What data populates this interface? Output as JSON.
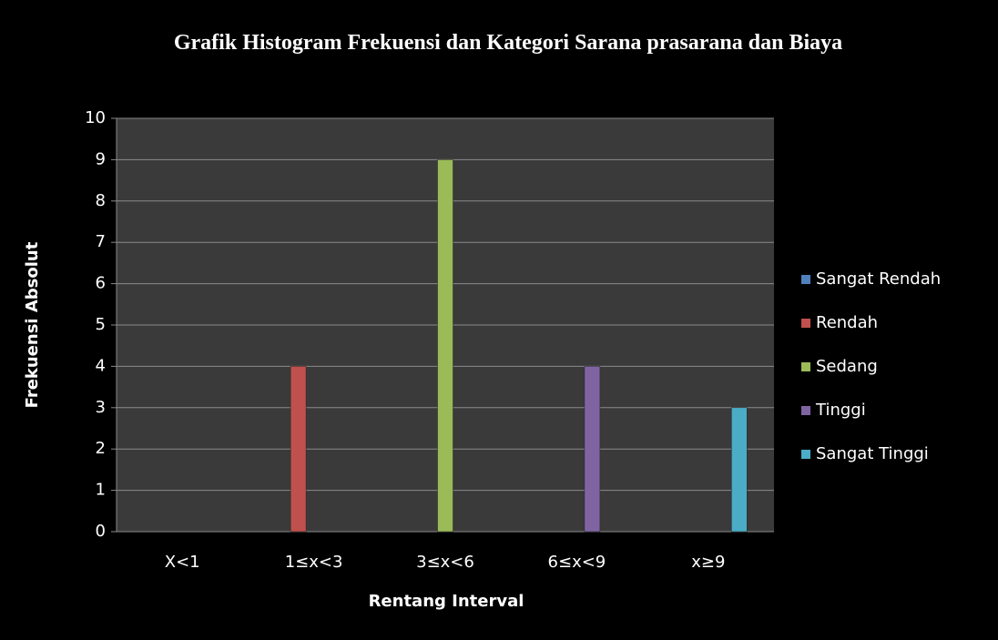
{
  "chart_data": {
    "type": "bar",
    "title": "Grafik Histogram Frekuensi dan Kategori Sarana prasarana dan Biaya",
    "xlabel": "Rentang Interval",
    "ylabel": "Frekuensi Absolut",
    "categories": [
      "X<1",
      "1≤x<3",
      "3≤x<6",
      "6≤x<9",
      "x≥9"
    ],
    "series": [
      {
        "name": "Sangat Rendah",
        "color": "#4f81bd",
        "values": [
          0,
          null,
          null,
          null,
          null
        ]
      },
      {
        "name": "Rendah",
        "color": "#c0504d",
        "values": [
          null,
          4,
          null,
          null,
          null
        ]
      },
      {
        "name": "Sedang",
        "color": "#9bbb59",
        "values": [
          null,
          null,
          9,
          null,
          null
        ]
      },
      {
        "name": "Tinggi",
        "color": "#8064a2",
        "values": [
          null,
          null,
          null,
          4,
          null
        ]
      },
      {
        "name": "Sangat Tinggi",
        "color": "#4bacc6",
        "values": [
          null,
          null,
          null,
          null,
          3
        ]
      }
    ],
    "ylim": [
      0,
      10
    ],
    "yticks": [
      0,
      1,
      2,
      3,
      4,
      5,
      6,
      7,
      8,
      9,
      10
    ],
    "grid": true,
    "legend": "right"
  }
}
